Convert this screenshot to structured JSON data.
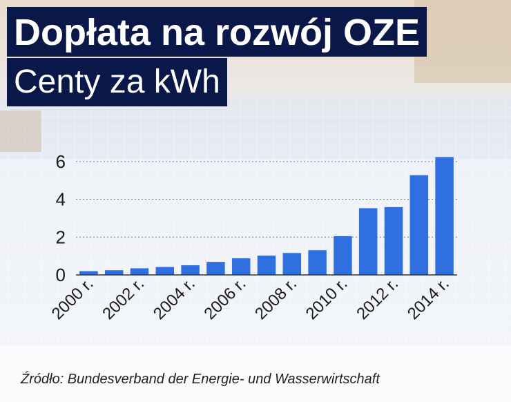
{
  "header": {
    "title": "Dopłata na rozwój OZE",
    "subtitle": "Centy za kWh"
  },
  "source": "Źródło: Bundesverband der Energie- und Wasserwirtschaft",
  "colors": {
    "bar": "#2f6fdf",
    "title_bg": "#0a1749",
    "title_text": "#ffffff",
    "gridline": "#7a7a7a"
  },
  "chart_data": {
    "type": "bar",
    "title": "Dopłata na rozwój OZE",
    "subtitle": "Centy za kWh",
    "categories": [
      "2000 r.",
      "2001 r.",
      "2002 r.",
      "2003 r.",
      "2004 r.",
      "2005 r.",
      "2006 r.",
      "2007 r.",
      "2008 r.",
      "2009 r.",
      "2010 r.",
      "2011 r.",
      "2012 r.",
      "2013 r.",
      "2014 r."
    ],
    "tick_labels": [
      "2000 r.",
      "2002 r.",
      "2004 r.",
      "2006 r.",
      "2008 r.",
      "2010 r.",
      "2012 r.",
      "2014 r."
    ],
    "values": [
      0.2,
      0.25,
      0.35,
      0.42,
      0.51,
      0.69,
      0.88,
      1.02,
      1.16,
      1.31,
      2.05,
      3.53,
      3.59,
      5.28,
      6.24
    ],
    "ylim": [
      0,
      6.8
    ],
    "yticks": [
      0,
      2,
      4,
      6
    ],
    "xlabel": "",
    "ylabel": "",
    "grid": "horizontal dotted"
  }
}
